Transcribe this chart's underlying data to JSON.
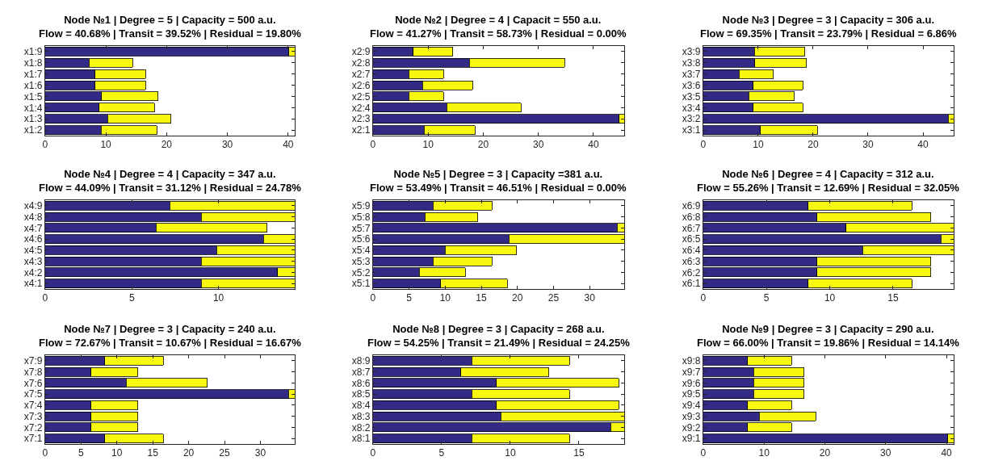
{
  "chart_data": [
    {
      "type": "bar",
      "orientation": "horizontal",
      "stacked": true,
      "title": "Node №1 | Degree = 5 | Capacity = 500 a.u.",
      "subtitle": "Flow = 40.68% | Transit = 39.52% | Residual = 19.80%",
      "categories": [
        "x1:9",
        "x1:8",
        "x1:7",
        "x1:6",
        "x1:5",
        "x1:4",
        "x1:3",
        "x1:2"
      ],
      "series": [
        {
          "color": "#332a86",
          "values": [
            40.1,
            7.2,
            8.2,
            8.2,
            9.3,
            8.9,
            10.3,
            9.2
          ]
        },
        {
          "color": "#f7f70f",
          "values": [
            1.0,
            7.2,
            8.3,
            8.3,
            9.3,
            9.1,
            10.4,
            9.2
          ]
        }
      ],
      "xlim": [
        0,
        41.1
      ],
      "xticks": [
        0,
        10,
        20,
        30,
        40
      ]
    },
    {
      "type": "bar",
      "orientation": "horizontal",
      "stacked": true,
      "title": "Node №2 | Degree = 4 | Capacit = 550 a.u.",
      "subtitle": "Flow = 41.27% | Transit = 58.73% | Residual = 0.00%",
      "categories": [
        "x2:9",
        "x2:8",
        "x2:7",
        "x2:6",
        "x2:5",
        "x2:4",
        "x2:3",
        "x2:1"
      ],
      "series": [
        {
          "color": "#332a86",
          "values": [
            7.3,
            17.5,
            6.5,
            9.0,
            6.5,
            13.4,
            44.7,
            9.3
          ]
        },
        {
          "color": "#f7f70f",
          "values": [
            7.2,
            17.3,
            6.3,
            9.1,
            6.3,
            13.5,
            0.9,
            9.2
          ]
        }
      ],
      "xlim": [
        0,
        45.6
      ],
      "xticks": [
        0,
        10,
        20,
        30,
        40
      ]
    },
    {
      "type": "bar",
      "orientation": "horizontal",
      "stacked": true,
      "title": "Node №3 | Degree = 3 | Capacity = 306 a.u.",
      "subtitle": "Flow = 69.35% | Transit = 23.79% | Residual = 6.86%",
      "categories": [
        "x3:9",
        "x3:8",
        "x3:7",
        "x3:6",
        "x3:5",
        "x3:4",
        "x3:2",
        "x3:1"
      ],
      "series": [
        {
          "color": "#332a86",
          "values": [
            9.3,
            9.4,
            6.5,
            9.1,
            8.3,
            9.1,
            44.6,
            10.4
          ]
        },
        {
          "color": "#f7f70f",
          "values": [
            9.2,
            9.4,
            6.3,
            9.0,
            8.3,
            9.0,
            1.0,
            10.4
          ]
        }
      ],
      "xlim": [
        0,
        45.6
      ],
      "xticks": [
        0,
        10,
        20,
        30,
        40
      ]
    },
    {
      "type": "bar",
      "orientation": "horizontal",
      "stacked": true,
      "title": "Node №4 | Degree = 4 | Capacity = 347 a.u.",
      "subtitle": "Flow = 44.09% | Transit = 31.12% | Residual = 24.78%",
      "categories": [
        "x4:9",
        "x4:8",
        "x4:7",
        "x4:6",
        "x4:5",
        "x4:3",
        "x4:2",
        "x4:1"
      ],
      "series": [
        {
          "color": "#332a86",
          "values": [
            7.2,
            9.0,
            6.4,
            12.6,
            9.9,
            9.0,
            13.4,
            9.0
          ]
        },
        {
          "color": "#f7f70f",
          "values": [
            7.2,
            5.4,
            6.4,
            1.8,
            4.5,
            5.4,
            1.0,
            5.4
          ]
        }
      ],
      "xlim": [
        0,
        14.4
      ],
      "xticks": [
        0,
        5,
        10
      ]
    },
    {
      "type": "bar",
      "orientation": "horizontal",
      "stacked": true,
      "title": "Node №5 | Degree = 3 | Capacity =381 a.u.",
      "subtitle": "Flow = 53.49% | Transit = 46.51% | Residual = 0.00%",
      "categories": [
        "x5:9",
        "x5:8",
        "x5:7",
        "x5:6",
        "x5:4",
        "x5:3",
        "x5:2",
        "x5:1"
      ],
      "series": [
        {
          "color": "#332a86",
          "values": [
            8.3,
            7.2,
            33.8,
            18.8,
            10.0,
            8.3,
            6.4,
            9.4
          ]
        },
        {
          "color": "#f7f70f",
          "values": [
            8.2,
            7.3,
            1.0,
            16.0,
            9.9,
            8.2,
            6.4,
            9.2
          ]
        }
      ],
      "xlim": [
        0,
        34.8
      ],
      "xticks": [
        0,
        5,
        10,
        15,
        20,
        25,
        30
      ]
    },
    {
      "type": "bar",
      "orientation": "horizontal",
      "stacked": true,
      "title": "Node №6 | Degree = 4 | Capacity = 312 a.u.",
      "subtitle": "Flow = 55.26% | Transit = 12.69% | Residual = 32.05%",
      "categories": [
        "x6:9",
        "x6:8",
        "x6:7",
        "x6:5",
        "x6:4",
        "x6:3",
        "x6:2",
        "x6:1"
      ],
      "series": [
        {
          "color": "#332a86",
          "values": [
            8.3,
            9.0,
            11.3,
            18.8,
            12.6,
            9.0,
            9.0,
            8.3
          ]
        },
        {
          "color": "#f7f70f",
          "values": [
            8.2,
            9.0,
            8.5,
            1.0,
            7.2,
            9.0,
            9.0,
            8.2
          ]
        }
      ],
      "xlim": [
        0,
        19.8
      ],
      "xticks": [
        0,
        5,
        10,
        15
      ]
    },
    {
      "type": "bar",
      "orientation": "horizontal",
      "stacked": true,
      "title": "Node №7 | Degree = 3 | Capacity = 240 a.u.",
      "subtitle": "Flow = 72.67% | Transit = 10.67% | Residual = 16.67%",
      "categories": [
        "x7:9",
        "x7:8",
        "x7:6",
        "x7:5",
        "x7:4",
        "x7:3",
        "x7:2",
        "x7:1"
      ],
      "series": [
        {
          "color": "#332a86",
          "values": [
            8.3,
            6.4,
            11.3,
            33.9,
            6.4,
            6.4,
            6.4,
            8.3
          ]
        },
        {
          "color": "#f7f70f",
          "values": [
            8.2,
            6.5,
            11.3,
            0.9,
            6.5,
            6.5,
            6.5,
            8.2
          ]
        }
      ],
      "xlim": [
        0,
        34.8
      ],
      "xticks": [
        0,
        5,
        10,
        15,
        20,
        25,
        30
      ]
    },
    {
      "type": "bar",
      "orientation": "horizontal",
      "stacked": true,
      "title": "Node №8 | Degree = 3 | Capacity = 268 a.u.",
      "subtitle": "Flow = 54.25% | Transit = 21.49% | Residual = 24.25%",
      "categories": [
        "x8:9",
        "x8:7",
        "x8:6",
        "x8:5",
        "x8:4",
        "x8:3",
        "x8:2",
        "x8:1"
      ],
      "series": [
        {
          "color": "#332a86",
          "values": [
            7.2,
            6.4,
            9.0,
            7.2,
            9.0,
            9.3,
            17.3,
            7.2
          ]
        },
        {
          "color": "#f7f70f",
          "values": [
            7.1,
            6.4,
            8.9,
            7.1,
            8.9,
            9.0,
            1.0,
            7.1
          ]
        }
      ],
      "xlim": [
        0,
        18.3
      ],
      "xticks": [
        0,
        5,
        10,
        15
      ]
    },
    {
      "type": "bar",
      "orientation": "horizontal",
      "stacked": true,
      "title": "Node №9 | Degree = 3 | Capacity = 290 a.u.",
      "subtitle": "Flow = 66.00% | Transit = 19.86% | Residual = 14.14%",
      "categories": [
        "x9:8",
        "x9:7",
        "x9:6",
        "x9:5",
        "x9:4",
        "x9:3",
        "x9:2",
        "x9:1"
      ],
      "series": [
        {
          "color": "#332a86",
          "values": [
            7.3,
            8.3,
            8.3,
            8.3,
            7.3,
            9.2,
            7.3,
            40.2
          ]
        },
        {
          "color": "#f7f70f",
          "values": [
            7.2,
            8.3,
            8.3,
            8.3,
            7.2,
            9.3,
            7.2,
            1.0
          ]
        }
      ],
      "xlim": [
        0,
        41.2
      ],
      "xticks": [
        0,
        10,
        20,
        30,
        40
      ]
    }
  ]
}
